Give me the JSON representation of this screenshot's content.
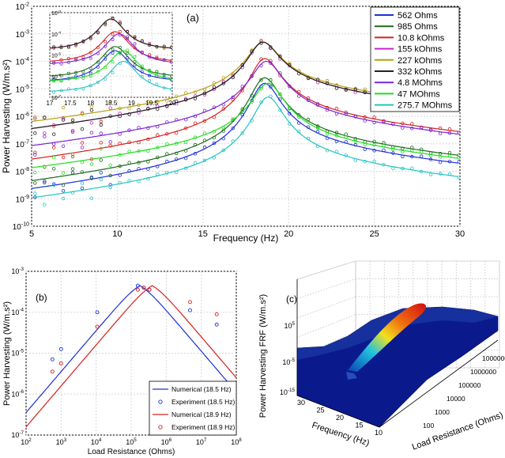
{
  "chart_data": [
    {
      "panel": "(a)",
      "type": "line",
      "xlabel": "Frequency (Hz)",
      "ylabel": "Power Harvesting (W/m.s²)",
      "xlim": [
        5,
        30
      ],
      "ylim_log10": [
        -10,
        -2
      ],
      "log_y": true,
      "x_ticks": [
        5,
        10,
        15,
        20,
        25,
        30
      ],
      "y_tick_exponents": [
        -10,
        -9,
        -8,
        -7,
        -6,
        -5,
        -4,
        -3,
        -2
      ],
      "legend_position": "top-right",
      "series": [
        {
          "name": "562 Ohms",
          "color": "#1f2fd6",
          "peak_hz": 18.6,
          "peak_log": -4.8,
          "low_log": -9.3,
          "high_log": -8.3
        },
        {
          "name": "985 Ohms",
          "color": "#1b6b1b",
          "peak_hz": 18.6,
          "peak_log": -4.6,
          "low_log": -9.0,
          "high_log": -8.0
        },
        {
          "name": "10.8 kOhms",
          "color": "#d62020",
          "peak_hz": 18.6,
          "peak_log": -3.9,
          "low_log": -8.2,
          "high_log": -7.1
        },
        {
          "name": "155 kOhms",
          "color": "#cc22cc",
          "peak_hz": 18.5,
          "peak_log": -3.3,
          "low_log": -7.0,
          "high_log": -6.1
        },
        {
          "name": "227 kOhms",
          "color": "#b8a010",
          "peak_hz": 18.5,
          "peak_log": -3.3,
          "low_log": -6.7,
          "high_log": -6.0
        },
        {
          "name": "332 kOhms",
          "color": "#222222",
          "peak_hz": 18.5,
          "peak_log": -3.3,
          "low_log": -7.0,
          "high_log": -6.1
        },
        {
          "name": "4.8 MOhms",
          "color": "#7a22d6",
          "peak_hz": 18.7,
          "peak_log": -4.0,
          "low_log": -7.6,
          "high_log": -7.2
        },
        {
          "name": "47 MOhms",
          "color": "#22dd22",
          "peak_hz": 18.8,
          "peak_log": -4.8,
          "low_log": -8.4,
          "high_log": -8.1
        },
        {
          "name": "275.7 MOhms",
          "color": "#22c4c4",
          "peak_hz": 18.8,
          "peak_log": -5.3,
          "low_log": -9.6,
          "high_log": -8.8
        }
      ],
      "inset": {
        "xlim": [
          17,
          20
        ],
        "x_ticks": [
          "17",
          "17.5",
          "18",
          "18.5",
          "19",
          "19.5",
          "20"
        ],
        "y_tick_exponents": [
          -7,
          -6,
          -5,
          -4,
          -3
        ],
        "ylim_log10": [
          -7,
          -3
        ]
      },
      "annotation": "(a)"
    },
    {
      "panel": "(b)",
      "type": "line",
      "xlabel": "Load Resistance (Ohms)",
      "ylabel": "Power Harvesting (W/m.s²)",
      "log_x": true,
      "log_y": true,
      "xlim_log10": [
        2,
        8
      ],
      "ylim_log10": [
        -7,
        -3
      ],
      "x_tick_exponents": [
        2,
        3,
        4,
        5,
        6,
        7,
        8
      ],
      "y_tick_exponents": [
        -7,
        -6,
        -5,
        -4,
        -3
      ],
      "legend_position": "bottom-right",
      "series": [
        {
          "name": "Numerical (18.5 Hz)",
          "style": "line",
          "color": "#1f2fd6",
          "peak_R_log": 5.25,
          "peak_log": -3.35,
          "low_log": -6.2
        },
        {
          "name": "Experiment (18.5 Hz)",
          "style": "marker",
          "color": "#1f2fd6",
          "x_log": [
            2.75,
            3.0,
            4.03,
            5.19,
            5.36,
            5.52,
            6.68,
            7.44
          ],
          "y_log": [
            -5.15,
            -4.9,
            -4.0,
            -3.35,
            -3.4,
            -3.45,
            -3.95,
            -4.3
          ]
        },
        {
          "name": "Numerical (18.9 Hz)",
          "style": "line",
          "color": "#d62020",
          "peak_R_log": 5.6,
          "peak_log": -3.35,
          "low_log": -6.55
        },
        {
          "name": "Experiment (18.9 Hz)",
          "style": "marker",
          "color": "#d62020",
          "x_log": [
            2.75,
            3.0,
            4.03,
            5.19,
            5.36,
            5.52,
            6.68,
            7.44
          ],
          "y_log": [
            -5.45,
            -5.25,
            -4.35,
            -3.45,
            -3.4,
            -3.45,
            -3.75,
            -4.05
          ]
        }
      ],
      "annotation": "(b)"
    },
    {
      "panel": "(c)",
      "type": "surface",
      "xlabel": "Frequency (Hz)",
      "ylabel": "Load Resistance (Ohms)",
      "zlabel": "Power Harvesting FRF (W/m.s²)",
      "x_ticks": [
        "30",
        "25",
        "20",
        "15",
        "10"
      ],
      "y_ticks": [
        "100",
        "1000",
        "10000",
        "100000",
        "1000000",
        "10000000"
      ],
      "z_tick_exponents": [
        -15,
        -5,
        5
      ],
      "annotation": "(c)"
    }
  ]
}
